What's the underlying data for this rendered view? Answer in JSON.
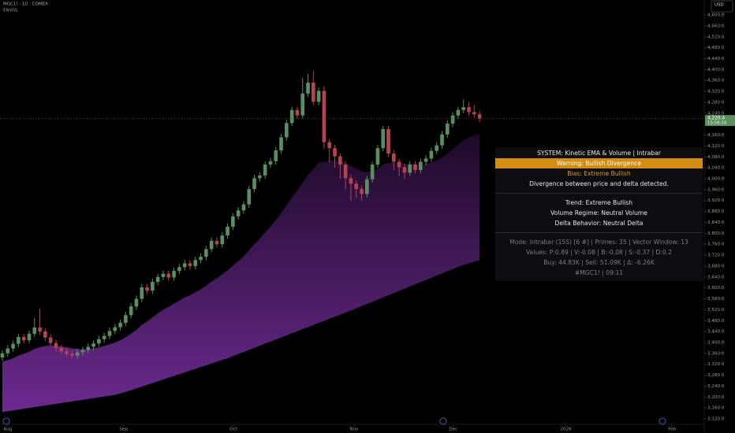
{
  "chart_data": {
    "type": "candlestick",
    "title": "MGC1! · 1D · COMEX",
    "indicator": "ENVOL",
    "currency": "USD",
    "up_color": "#5b8f5f",
    "down_color": "#b8424f",
    "band_top_color": "#1d0a28",
    "band_bottom_color": "#6b2a8f",
    "grid": false,
    "x": [
      0,
      1,
      2,
      3,
      4,
      5,
      6,
      7,
      8,
      9,
      10,
      11,
      12,
      13,
      14,
      15,
      16,
      17,
      18,
      19,
      20,
      21,
      22,
      23,
      24,
      25,
      26,
      27,
      28,
      29,
      30,
      31,
      32,
      33,
      34,
      35,
      36,
      37,
      38,
      39,
      40,
      41,
      42,
      43,
      44,
      45,
      46,
      47,
      48,
      49,
      50,
      51,
      52,
      53,
      54,
      55,
      56,
      57,
      58,
      59,
      60,
      61,
      62,
      63,
      64,
      65,
      66,
      67,
      68,
      69,
      70,
      71,
      72,
      73,
      74,
      75,
      76,
      77,
      78,
      79,
      80,
      81,
      82,
      83,
      84,
      85,
      86,
      87,
      88,
      89
    ],
    "open": [
      3345,
      3360,
      3378,
      3395,
      3420,
      3408,
      3432,
      3455,
      3440,
      3418,
      3398,
      3380,
      3368,
      3358,
      3352,
      3364,
      3372,
      3384,
      3396,
      3412,
      3424,
      3442,
      3456,
      3472,
      3500,
      3532,
      3560,
      3602,
      3590,
      3622,
      3640,
      3652,
      3638,
      3662,
      3676,
      3690,
      3680,
      3702,
      3714,
      3742,
      3772,
      3760,
      3792,
      3824,
      3862,
      3884,
      3906,
      3962,
      4002,
      4012,
      4052,
      4064,
      4104,
      4152,
      4204,
      4252,
      4232,
      4312,
      4352,
      4282,
      4322,
      4134,
      4112,
      4082,
      4052,
      4002,
      3982,
      3962,
      3944,
      3998,
      4052,
      4112,
      4182,
      4092,
      4062,
      4042,
      4022,
      4052,
      4032,
      4062,
      4074,
      4102,
      4122,
      4162,
      4202,
      4232,
      4252,
      4262,
      4244,
      4236
    ],
    "high": [
      3372,
      3390,
      3407,
      3432,
      3432,
      3444,
      3490,
      3525,
      3452,
      3430,
      3410,
      3392,
      3380,
      3370,
      3376,
      3384,
      3396,
      3408,
      3424,
      3436,
      3454,
      3468,
      3484,
      3512,
      3544,
      3572,
      3614,
      3614,
      3634,
      3652,
      3664,
      3664,
      3674,
      3688,
      3702,
      3702,
      3714,
      3726,
      3754,
      3784,
      3784,
      3804,
      3836,
      3874,
      3896,
      3918,
      3974,
      4014,
      4024,
      4064,
      4076,
      4116,
      4164,
      4216,
      4264,
      4264,
      4370,
      4385,
      4395,
      4334,
      4340,
      4146,
      4124,
      4094,
      4064,
      4014,
      3994,
      3974,
      4010,
      4064,
      4124,
      4194,
      4194,
      4104,
      4074,
      4054,
      4064,
      4064,
      4074,
      4086,
      4114,
      4134,
      4174,
      4214,
      4244,
      4264,
      4290,
      4280,
      4270,
      4248
    ],
    "low": [
      3333,
      3348,
      3366,
      3383,
      3396,
      3396,
      3420,
      3428,
      3406,
      3386,
      3368,
      3356,
      3346,
      3340,
      3340,
      3352,
      3360,
      3372,
      3384,
      3400,
      3412,
      3430,
      3444,
      3460,
      3488,
      3520,
      3548,
      3578,
      3578,
      3610,
      3628,
      3626,
      3626,
      3650,
      3664,
      3668,
      3668,
      3690,
      3702,
      3730,
      3748,
      3748,
      3780,
      3812,
      3850,
      3872,
      3894,
      3950,
      3990,
      4000,
      4040,
      4052,
      4092,
      4140,
      4192,
      4220,
      4220,
      4300,
      4270,
      4270,
      4110,
      4060,
      4040,
      4000,
      3960,
      3920,
      3930,
      3920,
      3932,
      3986,
      4040,
      4100,
      4080,
      4030,
      4010,
      4000,
      4010,
      4020,
      4020,
      4050,
      4062,
      4090,
      4110,
      4150,
      4190,
      4220,
      4240,
      4232,
      4224,
      4208
    ],
    "close": [
      3360,
      3378,
      3395,
      3420,
      3408,
      3432,
      3455,
      3440,
      3418,
      3398,
      3380,
      3368,
      3358,
      3352,
      3364,
      3372,
      3384,
      3396,
      3412,
      3424,
      3442,
      3456,
      3472,
      3500,
      3532,
      3560,
      3602,
      3590,
      3622,
      3640,
      3652,
      3638,
      3662,
      3676,
      3690,
      3680,
      3702,
      3714,
      3742,
      3772,
      3760,
      3792,
      3824,
      3862,
      3884,
      3906,
      3962,
      4002,
      4012,
      4052,
      4064,
      4104,
      4152,
      4204,
      4252,
      4232,
      4312,
      4352,
      4282,
      4322,
      4134,
      4112,
      4082,
      4052,
      4002,
      3982,
      3962,
      3944,
      3998,
      4052,
      4112,
      4182,
      4092,
      4062,
      4042,
      4022,
      4052,
      4032,
      4062,
      4074,
      4102,
      4122,
      4162,
      4202,
      4232,
      4252,
      4262,
      4244,
      4236,
      4220.4
    ],
    "band_upper": [
      3330,
      3335,
      3342,
      3352,
      3358,
      3366,
      3376,
      3383,
      3387,
      3388,
      3387,
      3385,
      3382,
      3378,
      3376,
      3375,
      3376,
      3378,
      3382,
      3387,
      3393,
      3400,
      3408,
      3419,
      3432,
      3446,
      3464,
      3476,
      3492,
      3507,
      3520,
      3530,
      3542,
      3553,
      3565,
      3573,
      3584,
      3595,
      3608,
      3623,
      3635,
      3649,
      3664,
      3681,
      3698,
      3715,
      3737,
      3760,
      3780,
      3803,
      3824,
      3848,
      3874,
      3902,
      3932,
      3955,
      3985,
      4015,
      4035,
      4058,
      4062,
      4065,
      4066,
      4064,
      4056,
      4047,
      4037,
      4027,
      4024,
      4027,
      4036,
      4053,
      4058,
      4058,
      4057,
      4054,
      4054,
      4052,
      4053,
      4055,
      4060,
      4067,
      4078,
      4092,
      4108,
      4125,
      4140,
      4151,
      4159,
      4164
    ],
    "band_lower": [
      3145,
      3148,
      3151,
      3154,
      3157,
      3160,
      3163,
      3166,
      3169,
      3172,
      3175,
      3178,
      3181,
      3184,
      3187,
      3190,
      3193,
      3196,
      3199,
      3202,
      3205,
      3208,
      3213,
      3219,
      3225,
      3232,
      3238,
      3245,
      3251,
      3258,
      3264,
      3271,
      3277,
      3284,
      3290,
      3297,
      3303,
      3310,
      3316,
      3323,
      3329,
      3336,
      3342,
      3350,
      3358,
      3365,
      3373,
      3380,
      3388,
      3396,
      3403,
      3411,
      3418,
      3426,
      3434,
      3441,
      3449,
      3456,
      3464,
      3472,
      3479,
      3487,
      3494,
      3502,
      3510,
      3517,
      3525,
      3533,
      3541,
      3549,
      3557,
      3565,
      3573,
      3581,
      3589,
      3597,
      3605,
      3613,
      3621,
      3629,
      3637,
      3645,
      3653,
      3661,
      3669,
      3677,
      3684,
      3690,
      3696,
      3702
    ],
    "xlim": [
      -0.44,
      130.9
    ],
    "xticks": [
      {
        "value": 1,
        "label": "Aug"
      },
      {
        "value": 22.6,
        "label": "Sep"
      },
      {
        "value": 43.1,
        "label": "Oct"
      },
      {
        "value": 65.6,
        "label": "Nov"
      },
      {
        "value": 84.1,
        "label": "Dec"
      },
      {
        "value": 105.1,
        "label": "2026"
      },
      {
        "value": 124.9,
        "label": "Feb"
      }
    ],
    "ylim": [
      3097,
      4655
    ],
    "yticks": [
      {
        "value": 3120,
        "label": "3,120.0"
      },
      {
        "value": 3160,
        "label": "3,160.0"
      },
      {
        "value": 3200,
        "label": "3,200.0"
      },
      {
        "value": 3240,
        "label": "3,240.0"
      },
      {
        "value": 3280,
        "label": "3,280.0"
      },
      {
        "value": 3320,
        "label": "3,320.0"
      },
      {
        "value": 3360,
        "label": "3,360.0"
      },
      {
        "value": 3400,
        "label": "3,400.0"
      },
      {
        "value": 3440,
        "label": "3,440.0"
      },
      {
        "value": 3480,
        "label": "3,480.0"
      },
      {
        "value": 3520,
        "label": "3,520.0"
      },
      {
        "value": 3560,
        "label": "3,560.0"
      },
      {
        "value": 3600,
        "label": "3,600.0"
      },
      {
        "value": 3640,
        "label": "3,640.0"
      },
      {
        "value": 3680,
        "label": "3,680.0"
      },
      {
        "value": 3720,
        "label": "3,720.0"
      },
      {
        "value": 3760,
        "label": "3,760.0"
      },
      {
        "value": 3800,
        "label": "3,800.0"
      },
      {
        "value": 3840,
        "label": "3,840.0"
      },
      {
        "value": 3880,
        "label": "3,880.0"
      },
      {
        "value": 3920,
        "label": "3,920.0"
      },
      {
        "value": 3960,
        "label": "3,960.0"
      },
      {
        "value": 4000,
        "label": "4,000.0"
      },
      {
        "value": 4040,
        "label": "4,040.0"
      },
      {
        "value": 4080,
        "label": "4,080.0"
      },
      {
        "value": 4120,
        "label": "4,120.0"
      },
      {
        "value": 4160,
        "label": "4,160.0"
      },
      {
        "value": 4200,
        "label": "4,200.0"
      },
      {
        "value": 4240,
        "label": "4,240.0"
      },
      {
        "value": 4280,
        "label": "4,280.0"
      },
      {
        "value": 4320,
        "label": "4,320.0"
      },
      {
        "value": 4360,
        "label": "4,360.0"
      },
      {
        "value": 4400,
        "label": "4,400.0"
      },
      {
        "value": 4440,
        "label": "4,440.0"
      },
      {
        "value": 4480,
        "label": "4,480.0"
      },
      {
        "value": 4520,
        "label": "4,520.0"
      },
      {
        "value": 4560,
        "label": "4,560.0"
      },
      {
        "value": 4600,
        "label": "4,600.0"
      }
    ],
    "last_price": {
      "value": 4220.4,
      "label": "4,220.4"
    },
    "countdown": "13:58:34",
    "panel": {
      "system": "SYSTEM: Kinetic EMA & Volume | Intrabar",
      "warning": "Warning: Bullish Divergence",
      "bias": "Bias: Extreme Bullish",
      "divergence": "Divergence between price and delta detected.",
      "trend": "Trend: Extreme Bullish",
      "volume_regime": "Volume Regime: Neutral Volume",
      "delta_behavior": "Delta Behavior: Neutral Delta",
      "mode": "Mode: Intrabar (15S) [6 #] | Primes: 35 | Vector Window: 13",
      "values": "Values: P:0.89 | V:-0.08 | B:-0.08 | S:-0.37 | D:0.2",
      "flow": "Buy: 44.83K | Sell: 51.09K | Δ: -6.26K",
      "footer": "#MGC1! | 09:11"
    }
  }
}
